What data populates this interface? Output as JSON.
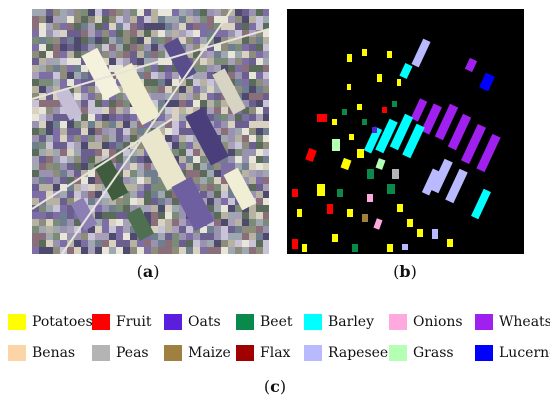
{
  "panels": {
    "a": {
      "caption_open": "(",
      "caption_letter": "a",
      "caption_close": ")"
    },
    "b": {
      "caption_open": "(",
      "caption_letter": "b",
      "caption_close": ")"
    },
    "c": {
      "caption_open": "(",
      "caption_letter": "c",
      "caption_close": ")"
    }
  },
  "legend": [
    {
      "label": "Potatoes",
      "color": "#ffff00"
    },
    {
      "label": "Fruit",
      "color": "#ff0000"
    },
    {
      "label": "Oats",
      "color": "#5a1edc"
    },
    {
      "label": "Beet",
      "color": "#0a8a4a"
    },
    {
      "label": "Barley",
      "color": "#00ffff"
    },
    {
      "label": "Onions",
      "color": "#ffaade"
    },
    {
      "label": "Wheats",
      "color": "#a020f0"
    },
    {
      "label": "Benas",
      "color": "#fcd5a6"
    },
    {
      "label": "Peas",
      "color": "#b4b4b4"
    },
    {
      "label": "Maize",
      "color": "#a08040"
    },
    {
      "label": "Flax",
      "color": "#a00000"
    },
    {
      "label": "Rapeseed",
      "color": "#b9b9ff"
    },
    {
      "label": "Grass",
      "color": "#b4ffb4"
    },
    {
      "label": "Lucerne",
      "color": "#0000ff"
    }
  ]
}
